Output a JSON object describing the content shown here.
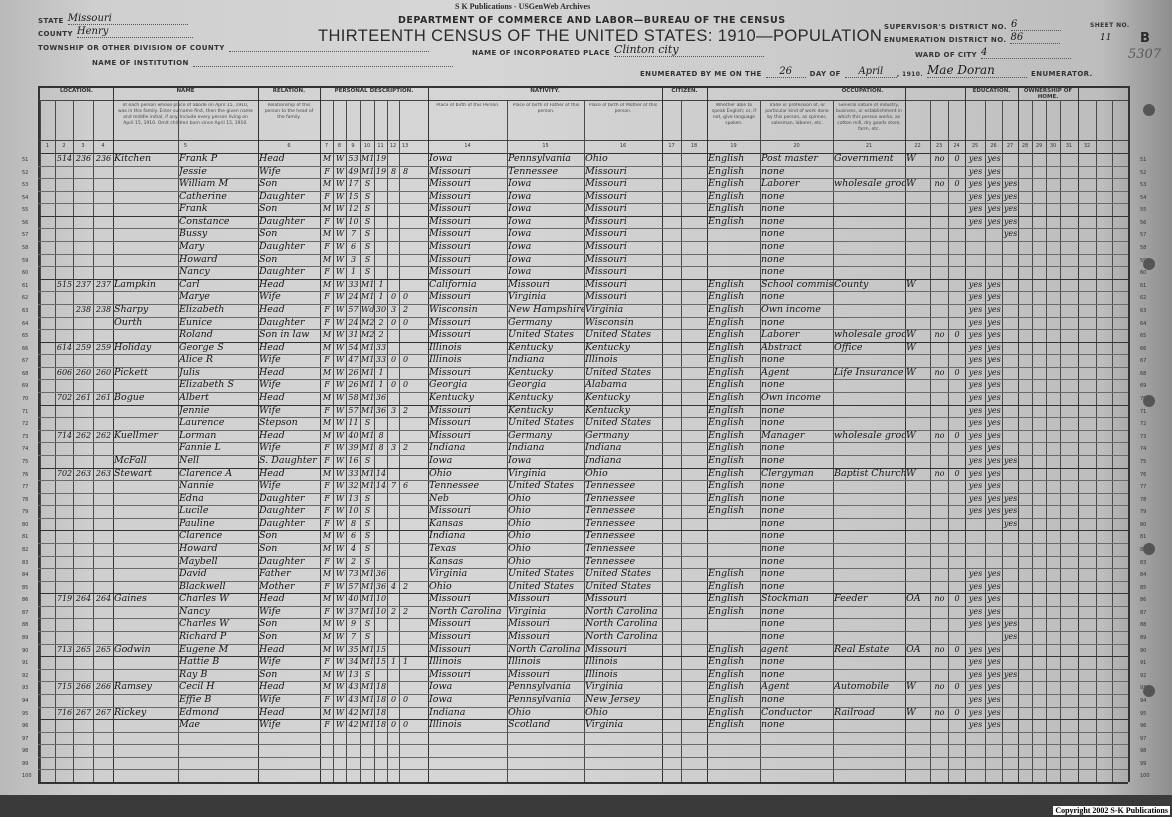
{
  "archive_banner": "S K Publications - USGenWeb Archives",
  "copyright": "Copyright 2002 S-K Publications",
  "form": {
    "department": "DEPARTMENT OF COMMERCE AND LABOR—BUREAU OF THE CENSUS",
    "title": "THIRTEENTH CENSUS OF THE UNITED STATES: 1910—POPULATION",
    "state_label": "STATE",
    "state_value": "Missouri",
    "county_label": "COUNTY",
    "county_value": "Henry",
    "township_label": "TOWNSHIP OR OTHER DIVISION OF COUNTY",
    "township_value": "",
    "institution_label": "NAME OF INSTITUTION",
    "institution_value": "",
    "place_label": "NAME OF INCORPORATED PLACE",
    "place_value": "Clinton city",
    "supervisor_label": "SUPERVISOR'S DISTRICT NO.",
    "supervisor_value": "6",
    "enumeration_label": "ENUMERATION DISTRICT NO.",
    "enumeration_value": "86",
    "sheet_label": "SHEET NO.",
    "sheet_value": "11",
    "sheet_side": "B",
    "ward_label": "WARD OF CITY",
    "ward_value": "4",
    "enumerated_label": "ENUMERATED BY ME ON THE",
    "enumerated_day": "26",
    "day_of_label": "DAY OF",
    "enumerated_month": "April",
    "year_label": ", 1910.",
    "enumerator_name": "Mae Doran",
    "enumerator_label": "ENUMERATOR.",
    "stamp_number": "5307"
  },
  "section_headers": [
    "LOCATION.",
    "NAME",
    "RELATION.",
    "PERSONAL DESCRIPTION.",
    "NATIVITY.",
    "CITIZEN.",
    "OCCUPATION.",
    "EDUCATION.",
    "OWNERSHIP OF HOME."
  ],
  "column_descriptions": {
    "name": "of each person whose place of abode on April 15, 1910, was in this family. Enter surname first, then the given name and middle initial, if any. Include every person living on April 15, 1910. Omit children born since April 15, 1910.",
    "relation": "Relationship of this person to the head of the family.",
    "birthplace": "Place of birth of this Person.",
    "father_birthplace": "Place of birth of Father of this person.",
    "mother_birthplace": "Place of birth of Mother of this person.",
    "language": "Whether able to speak English; or, if not, give language spoken.",
    "occupation": "Trade or profession of, or particular kind of work done by this person, as spinner, salesman, laborer, etc.",
    "industry": "General nature of industry, business, or establishment in which this person works, as cotton mill, dry goods store, farm, etc."
  },
  "column_numbers": [
    "1",
    "2",
    "3",
    "4",
    "5",
    "6",
    "7",
    "8",
    "9",
    "10",
    "11",
    "12",
    "13",
    "14",
    "15",
    "16",
    "17",
    "18",
    "19",
    "20",
    "21",
    "22",
    "23",
    "24",
    "25",
    "26",
    "27",
    "28",
    "29",
    "30",
    "31",
    "32"
  ],
  "rows": [
    [
      "51",
      "",
      "514",
      "236",
      "236",
      "Kitchen",
      "Frank P",
      "Head",
      "M",
      "W",
      "53",
      "M1",
      "19",
      "",
      "",
      "Iowa",
      "Pennsylvania",
      "Ohio",
      "English",
      "Post master",
      "Government",
      "W",
      "no",
      "0",
      "yes",
      "yes",
      ""
    ],
    [
      "52",
      "",
      "",
      "",
      "",
      "",
      "Jessie",
      "Wife",
      "F",
      "W",
      "49",
      "M1",
      "19",
      "8",
      "8",
      "Missouri",
      "Tennessee",
      "Missouri",
      "English",
      "none",
      "",
      "",
      "",
      "",
      "yes",
      "yes",
      ""
    ],
    [
      "53",
      "",
      "",
      "",
      "",
      "",
      "William M",
      "Son",
      "M",
      "W",
      "17",
      "S",
      "",
      "",
      "",
      "Missouri",
      "Iowa",
      "Missouri",
      "English",
      "Laborer",
      "wholesale grocery",
      "W",
      "no",
      "0",
      "yes",
      "yes",
      "yes"
    ],
    [
      "54",
      "",
      "",
      "",
      "",
      "",
      "Catherine",
      "Daughter",
      "F",
      "W",
      "15",
      "S",
      "",
      "",
      "",
      "Missouri",
      "Iowa",
      "Missouri",
      "English",
      "none",
      "",
      "",
      "",
      "",
      "yes",
      "yes",
      "yes"
    ],
    [
      "55",
      "",
      "",
      "",
      "",
      "",
      "Frank",
      "Son",
      "M",
      "W",
      "12",
      "S",
      "",
      "",
      "",
      "Missouri",
      "Iowa",
      "Missouri",
      "English",
      "none",
      "",
      "",
      "",
      "",
      "yes",
      "yes",
      "yes"
    ],
    [
      "56",
      "",
      "",
      "",
      "",
      "",
      "Constance",
      "Daughter",
      "F",
      "W",
      "10",
      "S",
      "",
      "",
      "",
      "Missouri",
      "Iowa",
      "Missouri",
      "English",
      "none",
      "",
      "",
      "",
      "",
      "yes",
      "yes",
      "yes"
    ],
    [
      "57",
      "",
      "",
      "",
      "",
      "",
      "Bussy",
      "Son",
      "M",
      "W",
      "7",
      "S",
      "",
      "",
      "",
      "Missouri",
      "Iowa",
      "Missouri",
      "",
      "none",
      "",
      "",
      "",
      "",
      "",
      "",
      "yes"
    ],
    [
      "58",
      "",
      "",
      "",
      "",
      "",
      "Mary",
      "Daughter",
      "F",
      "W",
      "6",
      "S",
      "",
      "",
      "",
      "Missouri",
      "Iowa",
      "Missouri",
      "",
      "none",
      "",
      "",
      "",
      "",
      "",
      "",
      ""
    ],
    [
      "59",
      "",
      "",
      "",
      "",
      "",
      "Howard",
      "Son",
      "M",
      "W",
      "3",
      "S",
      "",
      "",
      "",
      "Missouri",
      "Iowa",
      "Missouri",
      "",
      "none",
      "",
      "",
      "",
      "",
      "",
      "",
      ""
    ],
    [
      "60",
      "",
      "",
      "",
      "",
      "",
      "Nancy",
      "Daughter",
      "F",
      "W",
      "1",
      "S",
      "",
      "",
      "",
      "Missouri",
      "Iowa",
      "Missouri",
      "",
      "none",
      "",
      "",
      "",
      "",
      "",
      "",
      ""
    ],
    [
      "61",
      "",
      "515",
      "237",
      "237",
      "Lampkin",
      "Carl",
      "Head",
      "M",
      "W",
      "33",
      "M1",
      "1",
      "",
      "",
      "California",
      "Missouri",
      "Missouri",
      "English",
      "School commissioner",
      "County",
      "W",
      "",
      "",
      "yes",
      "yes",
      ""
    ],
    [
      "62",
      "",
      "",
      "",
      "",
      "",
      "Marye",
      "Wife",
      "F",
      "W",
      "24",
      "M1",
      "1",
      "0",
      "0",
      "Missouri",
      "Virginia",
      "Missouri",
      "English",
      "none",
      "",
      "",
      "",
      "",
      "yes",
      "yes",
      ""
    ],
    [
      "63",
      "",
      "",
      "238",
      "238",
      "Sharpy",
      "Elizabeth",
      "Head",
      "F",
      "W",
      "57",
      "Wd",
      "30",
      "3",
      "2",
      "Wisconsin",
      "New Hampshire",
      "Virginia",
      "English",
      "Own income",
      "",
      "",
      "",
      "",
      "yes",
      "yes",
      ""
    ],
    [
      "64",
      "",
      "",
      "",
      "",
      "Ourth",
      "Eunice",
      "Daughter",
      "F",
      "W",
      "24",
      "M2",
      "2",
      "0",
      "0",
      "Missouri",
      "Germany",
      "Wisconsin",
      "English",
      "none",
      "",
      "",
      "",
      "",
      "yes",
      "yes",
      ""
    ],
    [
      "65",
      "",
      "",
      "",
      "",
      "",
      "Roland",
      "Son in law",
      "M",
      "W",
      "31",
      "M2",
      "2",
      "",
      "",
      "Missouri",
      "United States",
      "United States",
      "English",
      "Laborer",
      "wholesale grocery",
      "W",
      "no",
      "0",
      "yes",
      "yes",
      ""
    ],
    [
      "66",
      "",
      "614",
      "259",
      "259",
      "Holiday",
      "George S",
      "Head",
      "M",
      "W",
      "54",
      "M1",
      "33",
      "",
      "",
      "Illinois",
      "Kentucky",
      "Kentucky",
      "English",
      "Abstract",
      "Office",
      "W",
      "",
      "",
      "yes",
      "yes",
      ""
    ],
    [
      "67",
      "",
      "",
      "",
      "",
      "",
      "Alice R",
      "Wife",
      "F",
      "W",
      "47",
      "M1",
      "33",
      "0",
      "0",
      "Illinois",
      "Indiana",
      "Illinois",
      "English",
      "none",
      "",
      "",
      "",
      "",
      "yes",
      "yes",
      ""
    ],
    [
      "68",
      "",
      "606",
      "260",
      "260",
      "Pickett",
      "Julis",
      "Head",
      "M",
      "W",
      "26",
      "M1",
      "1",
      "",
      "",
      "Missouri",
      "Kentucky",
      "United States",
      "English",
      "Agent",
      "Life Insurance",
      "W",
      "no",
      "0",
      "yes",
      "yes",
      ""
    ],
    [
      "69",
      "",
      "",
      "",
      "",
      "",
      "Elizabeth S",
      "Wife",
      "F",
      "W",
      "26",
      "M1",
      "1",
      "0",
      "0",
      "Georgia",
      "Georgia",
      "Alabama",
      "English",
      "none",
      "",
      "",
      "",
      "",
      "yes",
      "yes",
      ""
    ],
    [
      "70",
      "",
      "702",
      "261",
      "261",
      "Bogue",
      "Albert",
      "Head",
      "M",
      "W",
      "58",
      "M1",
      "36",
      "",
      "",
      "Kentucky",
      "Kentucky",
      "Kentucky",
      "English",
      "Own income",
      "",
      "",
      "",
      "",
      "yes",
      "yes",
      ""
    ],
    [
      "71",
      "",
      "",
      "",
      "",
      "",
      "Jennie",
      "Wife",
      "F",
      "W",
      "57",
      "M1",
      "36",
      "3",
      "2",
      "Missouri",
      "Kentucky",
      "Kentucky",
      "English",
      "none",
      "",
      "",
      "",
      "",
      "yes",
      "yes",
      ""
    ],
    [
      "72",
      "",
      "",
      "",
      "",
      "",
      "Laurence",
      "Stepson",
      "M",
      "W",
      "11",
      "S",
      "",
      "",
      "",
      "Missouri",
      "United States",
      "United States",
      "English",
      "none",
      "",
      "",
      "",
      "",
      "yes",
      "yes",
      ""
    ],
    [
      "73",
      "",
      "714",
      "262",
      "262",
      "Kuellmer",
      "Lorman",
      "Head",
      "M",
      "W",
      "40",
      "M1",
      "8",
      "",
      "",
      "Missouri",
      "Germany",
      "Germany",
      "English",
      "Manager",
      "wholesale grocery",
      "W",
      "no",
      "0",
      "yes",
      "yes",
      ""
    ],
    [
      "74",
      "",
      "",
      "",
      "",
      "",
      "Fannie L",
      "Wife",
      "F",
      "W",
      "39",
      "M1",
      "8",
      "3",
      "2",
      "Indiana",
      "Indiana",
      "Indiana",
      "English",
      "none",
      "",
      "",
      "",
      "",
      "yes",
      "yes",
      ""
    ],
    [
      "75",
      "",
      "",
      "",
      "",
      "McFall",
      "Nell",
      "S. Daughter",
      "F",
      "W",
      "16",
      "S",
      "",
      "",
      "",
      "Iowa",
      "Iowa",
      "Indiana",
      "English",
      "none",
      "",
      "",
      "",
      "",
      "yes",
      "yes",
      "yes"
    ],
    [
      "76",
      "",
      "702",
      "263",
      "263",
      "Stewart",
      "Clarence A",
      "Head",
      "M",
      "W",
      "33",
      "M1",
      "14",
      "",
      "",
      "Ohio",
      "Virginia",
      "Ohio",
      "English",
      "Clergyman",
      "Baptist Church",
      "W",
      "no",
      "0",
      "yes",
      "yes",
      ""
    ],
    [
      "77",
      "",
      "",
      "",
      "",
      "",
      "Nannie",
      "Wife",
      "F",
      "W",
      "32",
      "M1",
      "14",
      "7",
      "6",
      "Tennessee",
      "United States",
      "Tennessee",
      "English",
      "none",
      "",
      "",
      "",
      "",
      "yes",
      "yes",
      ""
    ],
    [
      "78",
      "",
      "",
      "",
      "",
      "",
      "Edna",
      "Daughter",
      "F",
      "W",
      "13",
      "S",
      "",
      "",
      "",
      "Neb",
      "Ohio",
      "Tennessee",
      "English",
      "none",
      "",
      "",
      "",
      "",
      "yes",
      "yes",
      "yes"
    ],
    [
      "79",
      "",
      "",
      "",
      "",
      "",
      "Lucile",
      "Daughter",
      "F",
      "W",
      "10",
      "S",
      "",
      "",
      "",
      "Missouri",
      "Ohio",
      "Tennessee",
      "English",
      "none",
      "",
      "",
      "",
      "",
      "yes",
      "yes",
      "yes"
    ],
    [
      "80",
      "",
      "",
      "",
      "",
      "",
      "Pauline",
      "Daughter",
      "F",
      "W",
      "8",
      "S",
      "",
      "",
      "",
      "Kansas",
      "Ohio",
      "Tennessee",
      "",
      "none",
      "",
      "",
      "",
      "",
      "",
      "",
      "yes"
    ],
    [
      "81",
      "",
      "",
      "",
      "",
      "",
      "Clarence",
      "Son",
      "M",
      "W",
      "6",
      "S",
      "",
      "",
      "",
      "Indiana",
      "Ohio",
      "Tennessee",
      "",
      "none",
      "",
      "",
      "",
      "",
      "",
      "",
      ""
    ],
    [
      "82",
      "",
      "",
      "",
      "",
      "",
      "Howard",
      "Son",
      "M",
      "W",
      "4",
      "S",
      "",
      "",
      "",
      "Texas",
      "Ohio",
      "Tennessee",
      "",
      "none",
      "",
      "",
      "",
      "",
      "",
      "",
      ""
    ],
    [
      "83",
      "",
      "",
      "",
      "",
      "",
      "Maybell",
      "Daughter",
      "F",
      "W",
      "2",
      "S",
      "",
      "",
      "",
      "Kansas",
      "Ohio",
      "Tennessee",
      "",
      "none",
      "",
      "",
      "",
      "",
      "",
      "",
      ""
    ],
    [
      "84",
      "",
      "",
      "",
      "",
      "",
      "David",
      "Father",
      "M",
      "W",
      "73",
      "M1",
      "36",
      "",
      "",
      "Virginia",
      "United States",
      "United States",
      "English",
      "none",
      "",
      "",
      "",
      "",
      "yes",
      "yes",
      ""
    ],
    [
      "85",
      "",
      "",
      "",
      "",
      "",
      "Blackwell",
      "Mother",
      "F",
      "W",
      "57",
      "M1",
      "36",
      "4",
      "2",
      "Ohio",
      "United States",
      "United States",
      "English",
      "none",
      "",
      "",
      "",
      "",
      "yes",
      "yes",
      ""
    ],
    [
      "86",
      "",
      "719",
      "264",
      "264",
      "Gaines",
      "Charles W",
      "Head",
      "M",
      "W",
      "40",
      "M1",
      "10",
      "",
      "",
      "Missouri",
      "Missouri",
      "Missouri",
      "English",
      "Stockman",
      "Feeder",
      "OA",
      "no",
      "0",
      "yes",
      "yes",
      ""
    ],
    [
      "87",
      "",
      "",
      "",
      "",
      "",
      "Nancy",
      "Wife",
      "F",
      "W",
      "37",
      "M1",
      "10",
      "2",
      "2",
      "North Carolina",
      "Virginia",
      "North Carolina",
      "English",
      "none",
      "",
      "",
      "",
      "",
      "yes",
      "yes",
      ""
    ],
    [
      "88",
      "",
      "",
      "",
      "",
      "",
      "Charles W",
      "Son",
      "M",
      "W",
      "9",
      "S",
      "",
      "",
      "",
      "Missouri",
      "Missouri",
      "North Carolina",
      "",
      "none",
      "",
      "",
      "",
      "",
      "yes",
      "yes",
      "yes"
    ],
    [
      "89",
      "",
      "",
      "",
      "",
      "",
      "Richard P",
      "Son",
      "M",
      "W",
      "7",
      "S",
      "",
      "",
      "",
      "Missouri",
      "Missouri",
      "North Carolina",
      "",
      "none",
      "",
      "",
      "",
      "",
      "",
      "",
      "yes"
    ],
    [
      "90",
      "",
      "713",
      "265",
      "265",
      "Godwin",
      "Eugene M",
      "Head",
      "M",
      "W",
      "35",
      "M1",
      "15",
      "",
      "",
      "Missouri",
      "North Carolina",
      "Missouri",
      "English",
      "agent",
      "Real Estate",
      "OA",
      "no",
      "0",
      "yes",
      "yes",
      ""
    ],
    [
      "91",
      "",
      "",
      "",
      "",
      "",
      "Hattie B",
      "Wife",
      "F",
      "W",
      "34",
      "M1",
      "15",
      "1",
      "1",
      "Illinois",
      "Illinois",
      "Illinois",
      "English",
      "none",
      "",
      "",
      "",
      "",
      "yes",
      "yes",
      ""
    ],
    [
      "92",
      "",
      "",
      "",
      "",
      "",
      "Ray B",
      "Son",
      "M",
      "W",
      "13",
      "S",
      "",
      "",
      "",
      "Missouri",
      "Missouri",
      "Illinois",
      "English",
      "none",
      "",
      "",
      "",
      "",
      "yes",
      "yes",
      "yes"
    ],
    [
      "93",
      "",
      "715",
      "266",
      "266",
      "Ramsey",
      "Cecil H",
      "Head",
      "M",
      "W",
      "43",
      "M1",
      "18",
      "",
      "",
      "Iowa",
      "Pennsylvania",
      "Virginia",
      "English",
      "Agent",
      "Automobile",
      "W",
      "no",
      "0",
      "yes",
      "yes",
      ""
    ],
    [
      "94",
      "",
      "",
      "",
      "",
      "",
      "Effie B",
      "Wife",
      "F",
      "W",
      "43",
      "M1",
      "18",
      "0",
      "0",
      "Iowa",
      "Pennsylvania",
      "New Jersey",
      "English",
      "none",
      "",
      "",
      "",
      "",
      "yes",
      "yes",
      ""
    ],
    [
      "95",
      "",
      "716",
      "267",
      "267",
      "Rickey",
      "Edmond",
      "Head",
      "M",
      "W",
      "42",
      "M1",
      "18",
      "",
      "",
      "Indiana",
      "Ohio",
      "Ohio",
      "English",
      "Conductor",
      "Railroad",
      "W",
      "no",
      "0",
      "yes",
      "yes",
      ""
    ],
    [
      "96",
      "",
      "",
      "",
      "",
      "",
      "Mae",
      "Wife",
      "F",
      "W",
      "42",
      "M1",
      "18",
      "0",
      "0",
      "Illinois",
      "Scotland",
      "Virginia",
      "English",
      "none",
      "",
      "",
      "",
      "",
      "yes",
      "yes",
      ""
    ],
    [
      "97",
      "",
      "",
      "",
      "",
      "",
      "",
      "",
      "",
      "",
      "",
      "",
      "",
      "",
      "",
      "",
      "",
      "",
      "",
      "",
      "",
      "",
      "",
      "",
      "",
      "",
      ""
    ],
    [
      "98",
      "",
      "",
      "",
      "",
      "",
      "",
      "",
      "",
      "",
      "",
      "",
      "",
      "",
      "",
      "",
      "",
      "",
      "",
      "",
      "",
      "",
      "",
      "",
      "",
      "",
      ""
    ],
    [
      "99",
      "",
      "",
      "",
      "",
      "",
      "",
      "",
      "",
      "",
      "",
      "",
      "",
      "",
      "",
      "",
      "",
      "",
      "",
      "",
      "",
      "",
      "",
      "",
      "",
      "",
      ""
    ],
    [
      "100",
      "",
      "",
      "",
      "",
      "",
      "",
      "",
      "",
      "",
      "",
      "",
      "",
      "",
      "",
      "",
      "",
      "",
      "",
      "",
      "",
      "",
      "",
      "",
      "",
      "",
      ""
    ]
  ]
}
